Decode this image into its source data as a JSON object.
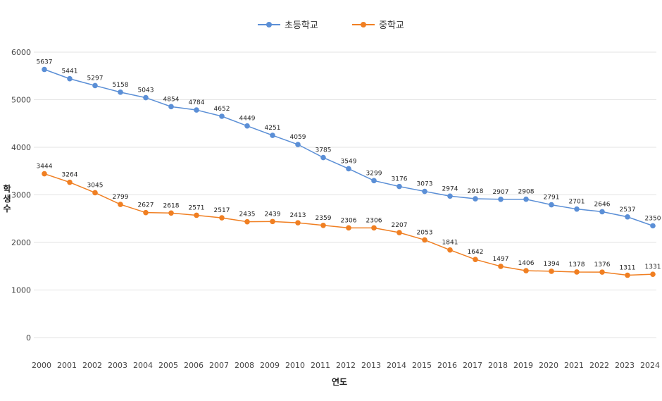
{
  "chart_data": {
    "type": "line",
    "title": "",
    "xlabel": "연도",
    "ylabel": "학생 수",
    "ylim": [
      0,
      6000
    ],
    "yticks": [
      0,
      1000,
      2000,
      3000,
      4000,
      5000,
      6000
    ],
    "grid": true,
    "legend_position": "top-center",
    "categories": [
      "2000",
      "2001",
      "2002",
      "2003",
      "2004",
      "2005",
      "2006",
      "2007",
      "2008",
      "2009",
      "2010",
      "2011",
      "2012",
      "2013",
      "2014",
      "2015",
      "2016",
      "2017",
      "2018",
      "2019",
      "2020",
      "2021",
      "2022",
      "2023",
      "2024"
    ],
    "series": [
      {
        "name": "초등학교",
        "color": "#5b8fd6",
        "values": [
          5637,
          5441,
          5297,
          5158,
          5043,
          4854,
          4784,
          4652,
          4449,
          4251,
          4059,
          3785,
          3549,
          3299,
          3176,
          3073,
          2974,
          2918,
          2907,
          2908,
          2791,
          2701,
          2646,
          2537,
          2350
        ]
      },
      {
        "name": "중학교",
        "color": "#f07f22",
        "values": [
          3444,
          3264,
          3045,
          2799,
          2627,
          2618,
          2571,
          2517,
          2435,
          2439,
          2413,
          2359,
          2306,
          2306,
          2207,
          2053,
          1841,
          1642,
          1497,
          1406,
          1394,
          1378,
          1376,
          1311,
          1331
        ]
      }
    ]
  }
}
